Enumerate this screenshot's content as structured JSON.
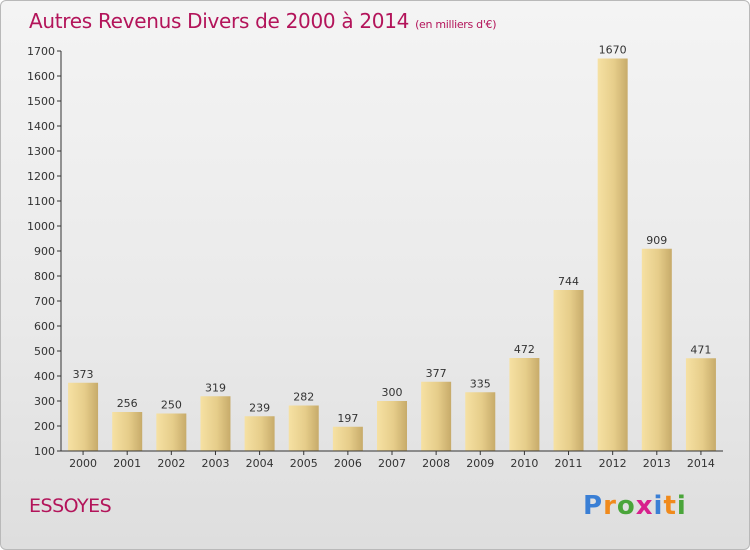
{
  "title": "Autres Revenus Divers de 2000 à 2014",
  "subtitle": "(en milliers d'€)",
  "place": "ESSOYES",
  "logo": {
    "text": "Proxiti",
    "letter_colors": [
      "#3a7fd5",
      "#f08a1c",
      "#4aa53a",
      "#d8208c",
      "#3a7fd5",
      "#f08a1c",
      "#4aa53a"
    ]
  },
  "colors": {
    "title": "#b3145a",
    "bar_light": "#f7e3a1",
    "bar_dark": "#c9ad6a",
    "axis": "#333333"
  },
  "chart_data": {
    "type": "bar",
    "title": "Autres Revenus Divers de 2000 à 2014",
    "subtitle": "(en milliers d'€)",
    "categories": [
      "2000",
      "2001",
      "2002",
      "2003",
      "2004",
      "2005",
      "2006",
      "2007",
      "2008",
      "2009",
      "2010",
      "2011",
      "2012",
      "2013",
      "2014"
    ],
    "values": [
      373,
      256,
      250,
      319,
      239,
      282,
      197,
      300,
      377,
      335,
      472,
      744,
      1670,
      909,
      471
    ],
    "ylim": [
      100,
      1700
    ],
    "yticks": [
      100,
      200,
      300,
      400,
      500,
      600,
      700,
      800,
      900,
      1000,
      1100,
      1200,
      1300,
      1400,
      1500,
      1600,
      1700
    ],
    "grid": false,
    "legend": "none"
  }
}
